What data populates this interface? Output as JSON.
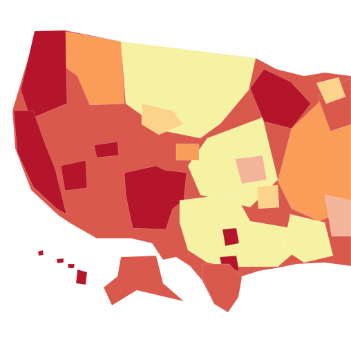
{
  "map": {
    "colors": [
      "#b5152b",
      "#d9594c",
      "#f99d59",
      "#f5f3a3",
      "#fcd38a",
      "#f4b49a"
    ]
  }
}
